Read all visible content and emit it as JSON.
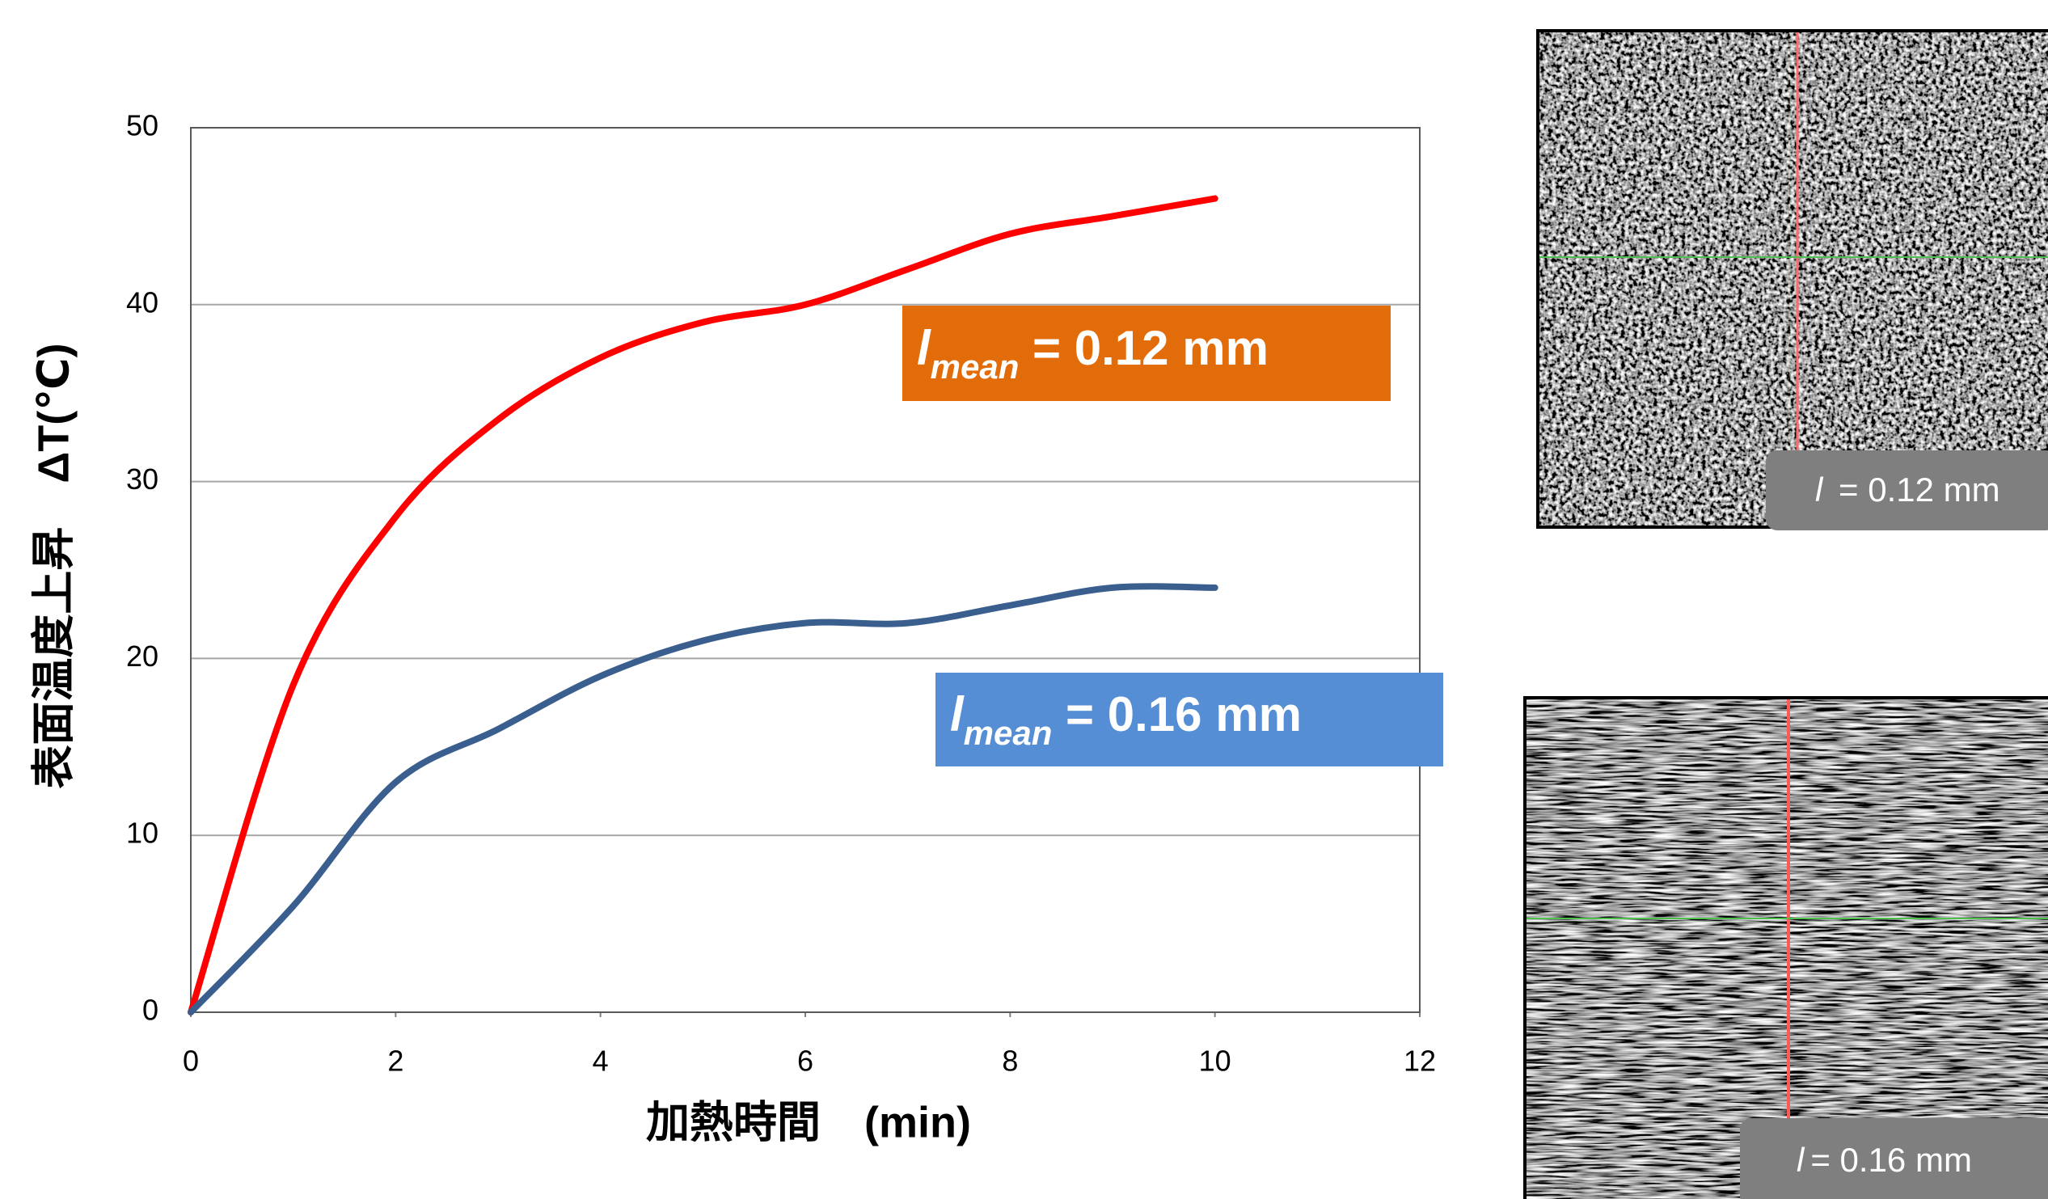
{
  "chart_data": {
    "type": "line",
    "x_label": "加熱時間　(min)",
    "y_label": "表面温度上昇　ΔT(℃)",
    "xlim": [
      0,
      12
    ],
    "xticks": [
      0,
      2,
      4,
      6,
      8,
      10,
      12
    ],
    "ylim": [
      0,
      50
    ],
    "yticks": [
      0,
      10,
      20,
      30,
      40,
      50
    ],
    "grid": true,
    "series": [
      {
        "color": "#ff0000",
        "x": [
          0,
          1,
          2,
          3,
          4,
          5,
          6,
          7,
          8,
          9,
          10
        ],
        "values": [
          0,
          18.5,
          28,
          33.5,
          37,
          39,
          40,
          42,
          44,
          45,
          46
        ]
      },
      {
        "color": "#3a5f8f",
        "x": [
          0,
          1,
          2,
          3,
          4,
          5,
          6,
          7,
          8,
          9,
          10
        ],
        "values": [
          0,
          6,
          13,
          16,
          19,
          21,
          22,
          22,
          23,
          24,
          24
        ]
      }
    ],
    "annotations": [
      {
        "symbol": "l",
        "subscript": "mean",
        "text": " = 0.12 mm",
        "color": "#e36c0a"
      },
      {
        "symbol": "l",
        "subscript": "mean",
        "text": " = 0.16 mm",
        "color": "#558ed5"
      }
    ]
  },
  "images": [
    {
      "symbol": "l",
      "text": " = 0.12 mm"
    },
    {
      "symbol": "l",
      "text": "= 0.16 mm"
    }
  ]
}
